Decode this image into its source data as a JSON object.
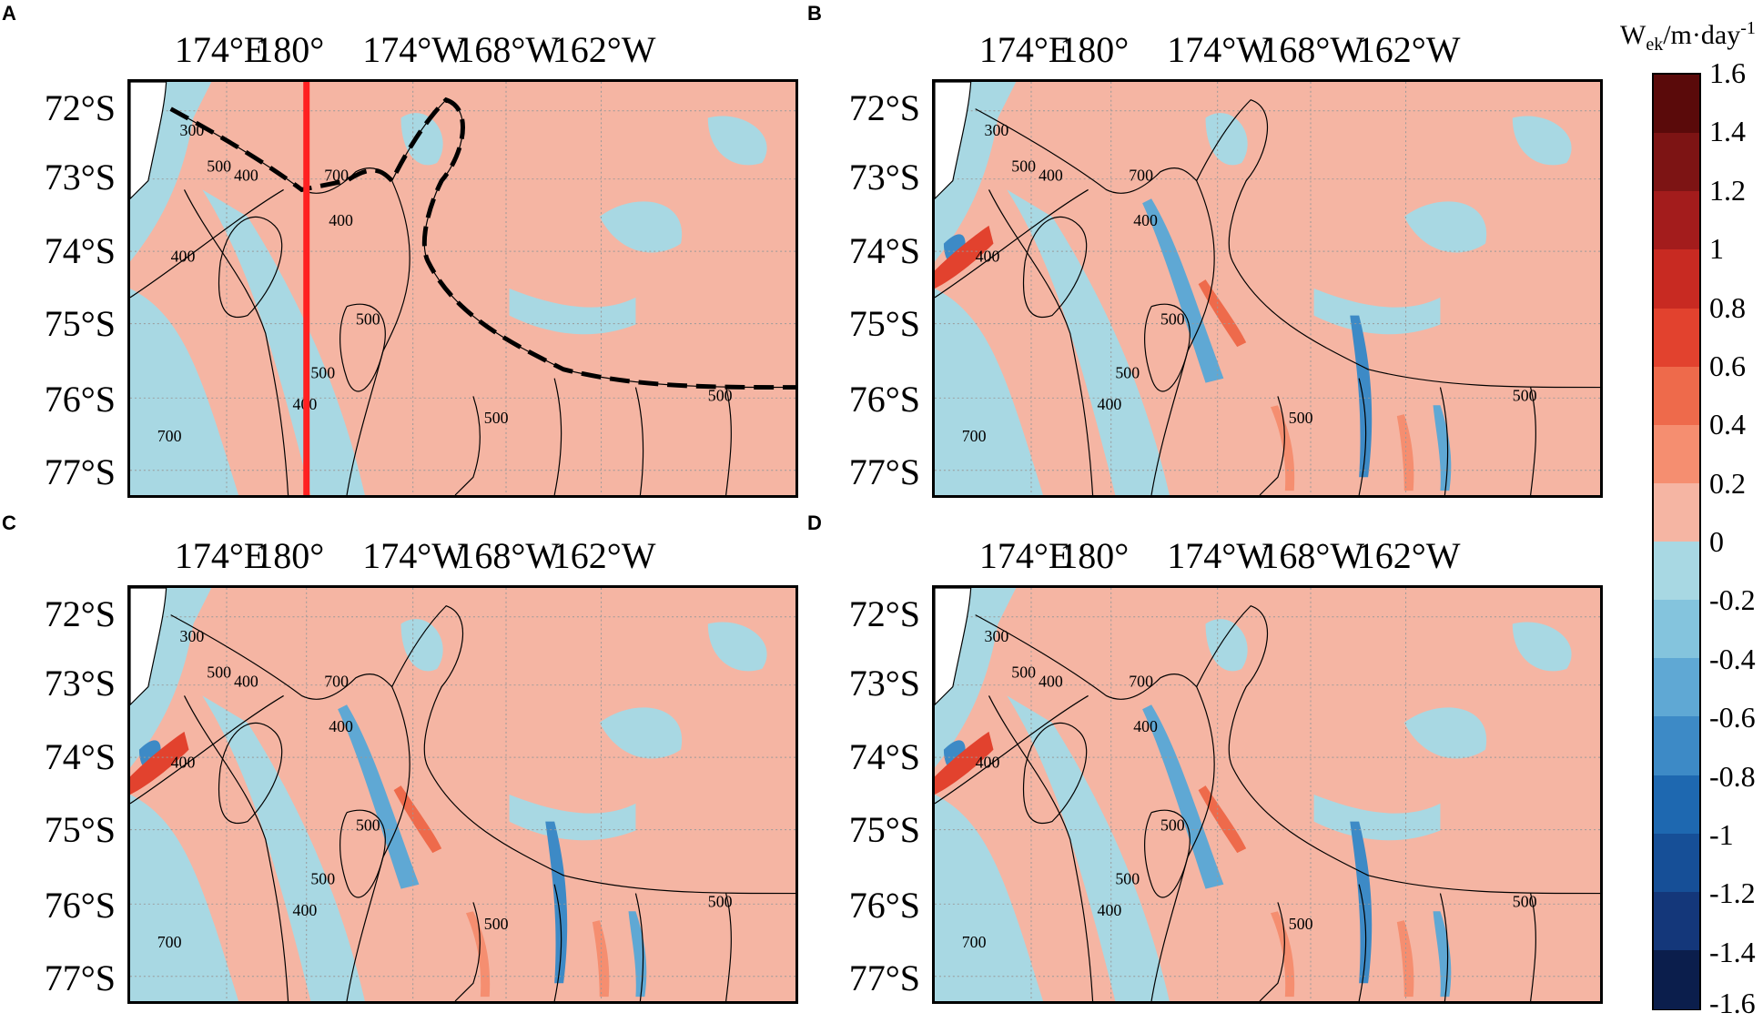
{
  "figure": {
    "panels": [
      {
        "label": "A",
        "has_section_line": true,
        "has_dashed_path": true
      },
      {
        "label": "B",
        "has_section_line": false,
        "has_dashed_path": false
      },
      {
        "label": "C",
        "has_section_line": false,
        "has_dashed_path": false
      },
      {
        "label": "D",
        "has_section_line": false,
        "has_dashed_path": false
      }
    ],
    "x_tick_labels": [
      "174°E",
      "180°",
      "174°W",
      "168°W",
      "162°W"
    ],
    "y_tick_labels": [
      "72°S",
      "73°S",
      "74°S",
      "75°S",
      "76°S",
      "77°S"
    ],
    "contour_labels": [
      "300",
      "500",
      "400",
      "700",
      "400",
      "400",
      "500",
      "500",
      "400",
      "700",
      "500",
      "500"
    ],
    "colorbar": {
      "title_main": "W",
      "title_sub": "ek",
      "title_rest": "/m·day",
      "title_sup": "-1",
      "tick_labels": [
        "1.6",
        "1.4",
        "1.2",
        "1",
        "0.8",
        "0.6",
        "0.4",
        "0.2",
        "0",
        "-0.2",
        "-0.4",
        "-0.6",
        "-0.8",
        "-1",
        "-1.2",
        "-1.4",
        "-1.6"
      ],
      "colors": [
        "#5a0a0a",
        "#7d1414",
        "#a31c1c",
        "#c82a22",
        "#e2422e",
        "#ee6a4b",
        "#f58e70",
        "#f5b5a3",
        "#a8d8e3",
        "#84c4dd",
        "#5fa8d4",
        "#3d8ac6",
        "#1e68b0",
        "#164f97",
        "#14377a",
        "#0b1e4c"
      ]
    },
    "section_line_color": "#ff2020",
    "positive_color": "#f5b5a3",
    "negative_color": "#a8d8e3"
  }
}
